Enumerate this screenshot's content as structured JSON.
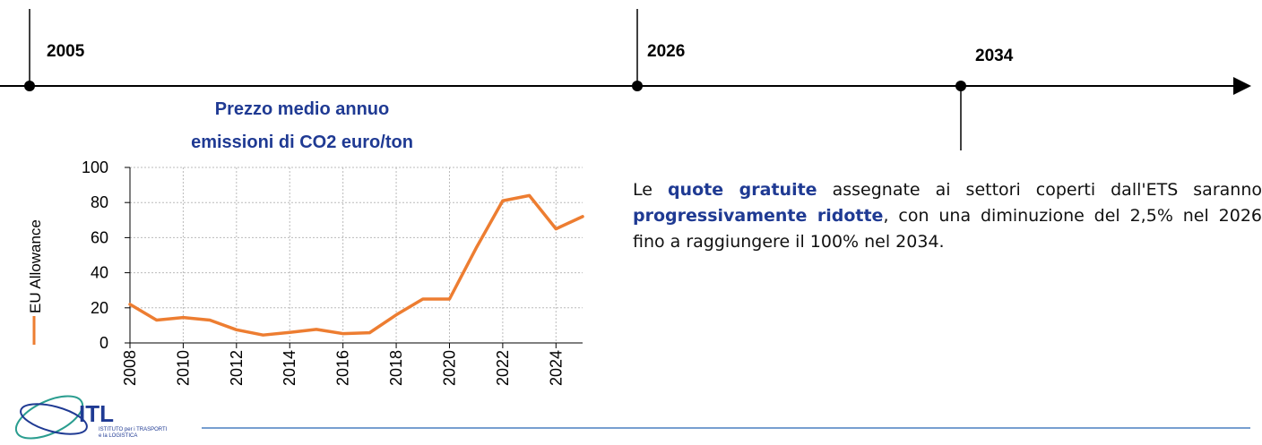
{
  "timeline": {
    "labels": [
      "2005",
      "2026",
      "2034"
    ]
  },
  "paragraph": [
    "Le ",
    "quote gratuite",
    " assegnate ai settori coperti dall'ETS saranno ",
    "progressivamente ridotte",
    ", con una diminuzione del 2,5% nel 2026 fino a raggiungere il 100% nel 2034."
  ],
  "logo": {
    "name": "ITL",
    "subtitle": [
      "ISTITUTO per i TRASPORTI",
      "e la LOGISTICA"
    ]
  },
  "chart_data": {
    "type": "line",
    "title": [
      "Prezzo medio annuo",
      "emissioni di CO2 euro/ton"
    ],
    "x": [
      2008,
      2009,
      2010,
      2011,
      2012,
      2013,
      2014,
      2015,
      2016,
      2017,
      2018,
      2019,
      2020,
      2021,
      2022,
      2023,
      2024,
      2025
    ],
    "series": [
      {
        "name": "EU Allowance",
        "color": "#ed7d31",
        "values": [
          22,
          13,
          14.5,
          13,
          7.5,
          4.5,
          6,
          7.7,
          5.3,
          5.8,
          16,
          25,
          25,
          54,
          81,
          84,
          65,
          72
        ]
      }
    ],
    "xlim": [
      2008,
      2025
    ],
    "xticks": [
      2008,
      2010,
      2012,
      2014,
      2016,
      2018,
      2020,
      2022,
      2024
    ],
    "ylim": [
      0,
      100
    ],
    "yticks": [
      0,
      20,
      40,
      60,
      80,
      100
    ],
    "grid": true
  }
}
